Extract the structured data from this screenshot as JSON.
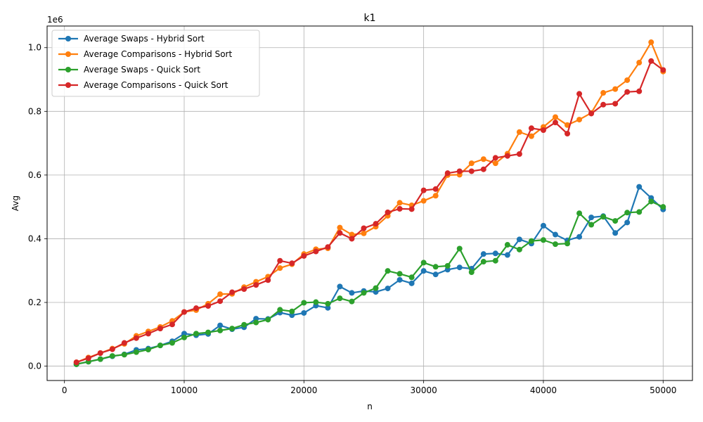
{
  "chart_data": {
    "type": "line",
    "title": "k1",
    "xlabel": "n",
    "ylabel": "Avg",
    "y_offset_text": "1e6",
    "y_multiplier": 1000000,
    "xlim": [
      -1450,
      52450
    ],
    "ylim": [
      -0.0451,
      1.0679
    ],
    "x_ticks": [
      0,
      10000,
      20000,
      30000,
      40000,
      50000
    ],
    "x_tick_labels": [
      "0",
      "10000",
      "20000",
      "30000",
      "40000",
      "50000"
    ],
    "y_ticks": [
      0.0,
      0.2,
      0.4,
      0.6,
      0.8,
      1.0
    ],
    "y_tick_labels": [
      "0.0",
      "0.2",
      "0.4",
      "0.6",
      "0.8",
      "1.0"
    ],
    "grid": true,
    "legend_position": "upper-left",
    "x": [
      1000,
      2000,
      3000,
      4000,
      5000,
      6000,
      7000,
      8000,
      9000,
      10000,
      11000,
      12000,
      13000,
      14000,
      15000,
      16000,
      17000,
      18000,
      19000,
      20000,
      21000,
      22000,
      23000,
      24000,
      25000,
      26000,
      27000,
      28000,
      29000,
      30000,
      31000,
      32000,
      33000,
      34000,
      35000,
      36000,
      37000,
      38000,
      39000,
      40000,
      41000,
      42000,
      43000,
      44000,
      45000,
      46000,
      47000,
      48000,
      49000,
      50000
    ],
    "series": [
      {
        "name": "Average Swaps - Hybrid Sort",
        "color": "#1f77b4",
        "values": [
          0.006,
          0.014,
          0.022,
          0.031,
          0.037,
          0.051,
          0.055,
          0.065,
          0.078,
          0.102,
          0.097,
          0.101,
          0.128,
          0.116,
          0.122,
          0.149,
          0.148,
          0.168,
          0.16,
          0.167,
          0.19,
          0.183,
          0.25,
          0.23,
          0.236,
          0.233,
          0.244,
          0.271,
          0.26,
          0.299,
          0.288,
          0.303,
          0.31,
          0.306,
          0.352,
          0.354,
          0.349,
          0.398,
          0.385,
          0.441,
          0.413,
          0.395,
          0.406,
          0.467,
          0.471,
          0.418,
          0.451,
          0.563,
          0.528,
          0.492
        ]
      },
      {
        "name": "Average Comparisons - Hybrid Sort",
        "color": "#ff7f0e",
        "values": [
          0.012,
          0.027,
          0.041,
          0.055,
          0.07,
          0.095,
          0.109,
          0.123,
          0.142,
          0.17,
          0.176,
          0.196,
          0.226,
          0.227,
          0.248,
          0.265,
          0.281,
          0.308,
          0.32,
          0.352,
          0.367,
          0.37,
          0.435,
          0.413,
          0.417,
          0.438,
          0.472,
          0.513,
          0.505,
          0.519,
          0.535,
          0.6,
          0.601,
          0.637,
          0.65,
          0.637,
          0.667,
          0.735,
          0.722,
          0.751,
          0.782,
          0.757,
          0.774,
          0.795,
          0.858,
          0.87,
          0.898,
          0.953,
          1.017,
          0.925
        ]
      },
      {
        "name": "Average Swaps - Quick Sort",
        "color": "#2ca02c",
        "values": [
          0.006,
          0.014,
          0.022,
          0.032,
          0.036,
          0.044,
          0.052,
          0.065,
          0.073,
          0.09,
          0.102,
          0.106,
          0.112,
          0.118,
          0.13,
          0.137,
          0.146,
          0.177,
          0.172,
          0.199,
          0.201,
          0.196,
          0.213,
          0.203,
          0.23,
          0.245,
          0.299,
          0.29,
          0.279,
          0.325,
          0.312,
          0.315,
          0.369,
          0.295,
          0.328,
          0.331,
          0.381,
          0.366,
          0.393,
          0.396,
          0.383,
          0.385,
          0.48,
          0.444,
          0.469,
          0.456,
          0.482,
          0.484,
          0.517,
          0.5
        ]
      },
      {
        "name": "Average Comparisons - Quick Sort",
        "color": "#d62728",
        "values": [
          0.012,
          0.025,
          0.041,
          0.053,
          0.073,
          0.088,
          0.102,
          0.118,
          0.131,
          0.17,
          0.182,
          0.189,
          0.204,
          0.232,
          0.242,
          0.255,
          0.27,
          0.331,
          0.323,
          0.346,
          0.36,
          0.374,
          0.418,
          0.4,
          0.433,
          0.447,
          0.483,
          0.494,
          0.493,
          0.552,
          0.556,
          0.606,
          0.612,
          0.612,
          0.618,
          0.654,
          0.66,
          0.666,
          0.747,
          0.741,
          0.765,
          0.73,
          0.855,
          0.793,
          0.821,
          0.824,
          0.861,
          0.863,
          0.958,
          0.93
        ]
      }
    ]
  }
}
